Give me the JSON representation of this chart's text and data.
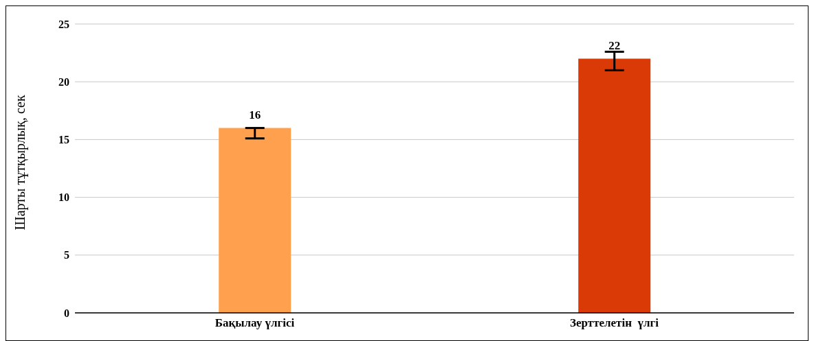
{
  "chart_data": {
    "type": "bar",
    "ylabel": "Шарты тұтқырлық, сек",
    "categories": [
      "Бақылау үлгісі",
      "Зерттелетін  үлгі"
    ],
    "values": [
      16,
      22
    ],
    "colors": [
      "#ffa04f",
      "#d93a06"
    ],
    "errors": [
      [
        15.1,
        16
      ],
      [
        21,
        22.6
      ]
    ],
    "ylim": [
      0,
      25
    ],
    "yticks": [
      0,
      5,
      10,
      15,
      20,
      25
    ],
    "grid": "y",
    "data_labels": true
  }
}
